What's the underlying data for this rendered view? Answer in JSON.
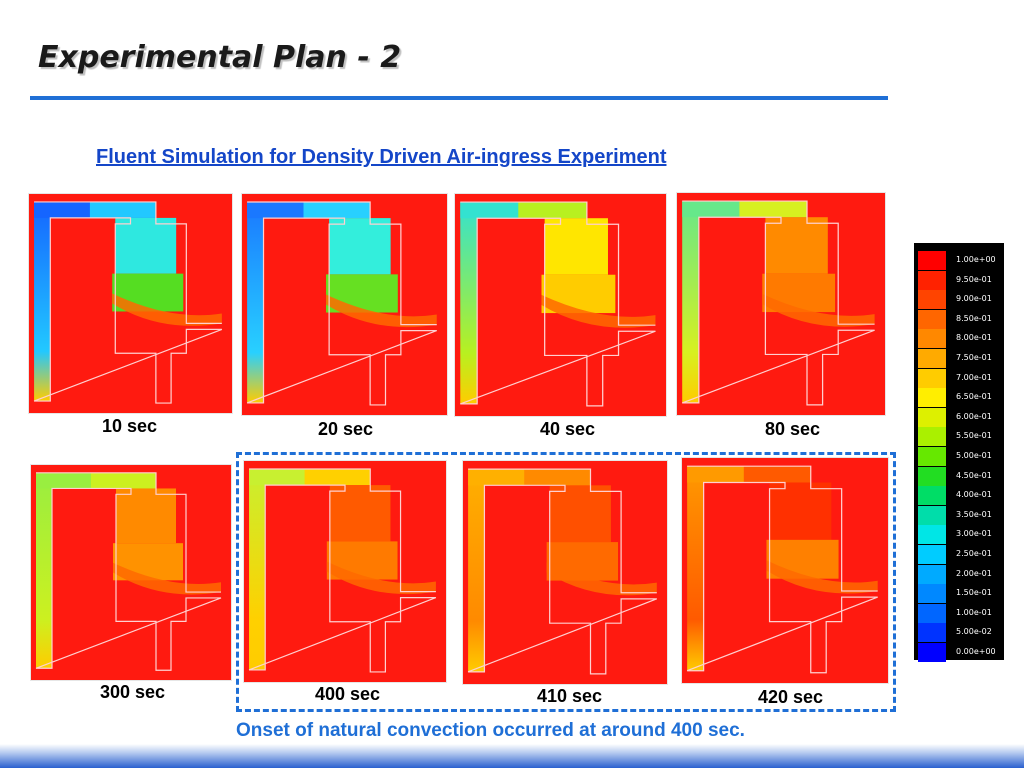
{
  "slide": {
    "title": "Experimental Plan - 2",
    "heading": "Fluent Simulation for Density Driven Air-ingress Experiment",
    "note": "Onset of natural convection occurred at around 400 sec."
  },
  "panels": [
    {
      "label": "10 sec",
      "fills": {
        "left": "#1565ff",
        "elbow": "#22c8ff",
        "upper": "#2ee8e0",
        "plume": "#55dd22",
        "lower": "#ff3a10"
      }
    },
    {
      "label": "20 sec",
      "fills": {
        "left": "#1a78ff",
        "elbow": "#28d0ff",
        "upper": "#33eedc",
        "plume": "#66e022",
        "lower": "#ff3a10"
      }
    },
    {
      "label": "40 sec",
      "fills": {
        "left": "#33e2d0",
        "elbow": "#b8f020",
        "upper": "#ffe600",
        "plume": "#ffcc00",
        "lower": "#ff3a10"
      }
    },
    {
      "label": "80 sec",
      "fills": {
        "left": "#66e88a",
        "elbow": "#d7f020",
        "upper": "#ff8a00",
        "plume": "#ff7a00",
        "lower": "#ff2a10"
      }
    },
    {
      "label": "300 sec",
      "fills": {
        "left": "#99ee40",
        "elbow": "#ccf020",
        "upper": "#ff8a00",
        "plume": "#ff9200",
        "lower": "#ff2a10"
      }
    },
    {
      "label": "400 sec",
      "fills": {
        "left": "#c8f030",
        "elbow": "#ffd000",
        "upper": "#ff5a00",
        "plume": "#ff7a00",
        "lower": "#ff2a10"
      }
    },
    {
      "label": "410 sec",
      "fills": {
        "left": "#ffb000",
        "elbow": "#ff8a00",
        "upper": "#ff5000",
        "plume": "#ff6a00",
        "lower": "#ff3a10"
      }
    },
    {
      "label": "420 sec",
      "fills": {
        "left": "#ff9a00",
        "elbow": "#ff5a00",
        "upper": "#ff3000",
        "plume": "#ff8000",
        "lower": "#ff3a10"
      }
    }
  ],
  "color_scale": {
    "ticks": [
      "1.00e+00",
      "9.50e-01",
      "9.00e-01",
      "8.50e-01",
      "8.00e-01",
      "7.50e-01",
      "7.00e-01",
      "6.50e-01",
      "6.00e-01",
      "5.50e-01",
      "5.00e-01",
      "4.50e-01",
      "4.00e-01",
      "3.50e-01",
      "3.00e-01",
      "2.50e-01",
      "2.00e-01",
      "1.50e-01",
      "1.00e-01",
      "5.00e-02",
      "0.00e+00"
    ],
    "colors": [
      "#ff0000",
      "#ff2200",
      "#ff4400",
      "#ff6600",
      "#ff8800",
      "#ffaa00",
      "#ffcc00",
      "#ffee00",
      "#ddf000",
      "#aaf000",
      "#66e800",
      "#22dd22",
      "#00dd66",
      "#00ddaa",
      "#00e6e6",
      "#00ccff",
      "#00aaff",
      "#0088ff",
      "#0066ff",
      "#0033ff",
      "#0000ff"
    ]
  },
  "colors": {
    "accent_blue": "#1f6fd6",
    "heading_blue": "#1446c8",
    "domain_red": "#ff1a10"
  }
}
